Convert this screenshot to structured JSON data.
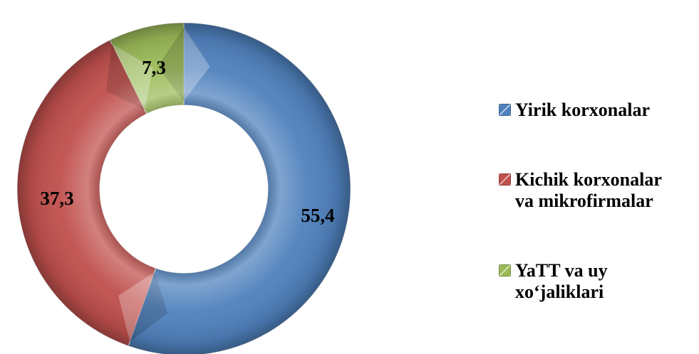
{
  "chart_data": {
    "type": "pie",
    "variant": "doughnut",
    "title": "",
    "legend_position": "right",
    "start_angle_deg": 0,
    "direction": "clockwise",
    "series": [
      {
        "name": "Yirik korxonalar",
        "value": 55.4,
        "label": "55,4",
        "color": "#4f81bd"
      },
      {
        "name": "Kichik korxonalar va mikrofirmalar",
        "value": 37.3,
        "label": "37,3",
        "color": "#c0504d"
      },
      {
        "name": "YaTT va uy xo‘jaliklari",
        "value": 7.3,
        "label": "7,3",
        "color": "#9bbb59"
      }
    ]
  },
  "legend": {
    "items": [
      {
        "lines": [
          "Yirik korxonalar"
        ],
        "color": "#4f81bd"
      },
      {
        "lines": [
          "Kichik korxonalar",
          "va mikrofirmalar"
        ],
        "color": "#c0504d"
      },
      {
        "lines": [
          "YaTT va uy",
          "xo‘jaliklari"
        ],
        "color": "#9bbb59"
      }
    ]
  }
}
